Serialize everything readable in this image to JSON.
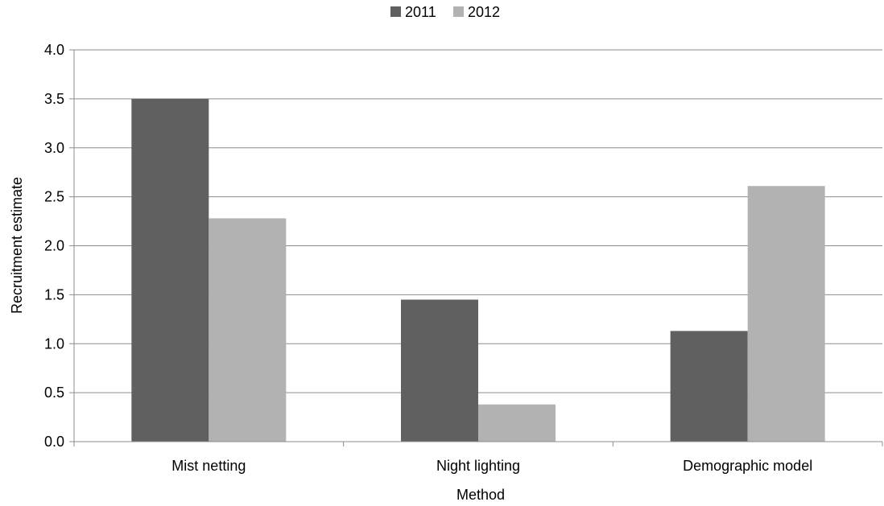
{
  "chart_data": {
    "type": "bar",
    "title": "",
    "xlabel": "Method",
    "ylabel": "Recruitment estimate",
    "categories": [
      "Mist netting",
      "Night lighting",
      "Demographic model"
    ],
    "series": [
      {
        "name": "2011",
        "color": "#606060",
        "values": [
          3.5,
          1.45,
          1.13
        ]
      },
      {
        "name": "2012",
        "color": "#b2b2b2",
        "values": [
          2.28,
          0.38,
          2.61
        ]
      }
    ],
    "ylim": [
      0,
      4.0
    ],
    "yticks": [
      "0.0",
      "0.5",
      "1.0",
      "1.5",
      "2.0",
      "2.5",
      "3.0",
      "3.5",
      "4.0"
    ],
    "grid": true,
    "legend_position": "top-center"
  }
}
